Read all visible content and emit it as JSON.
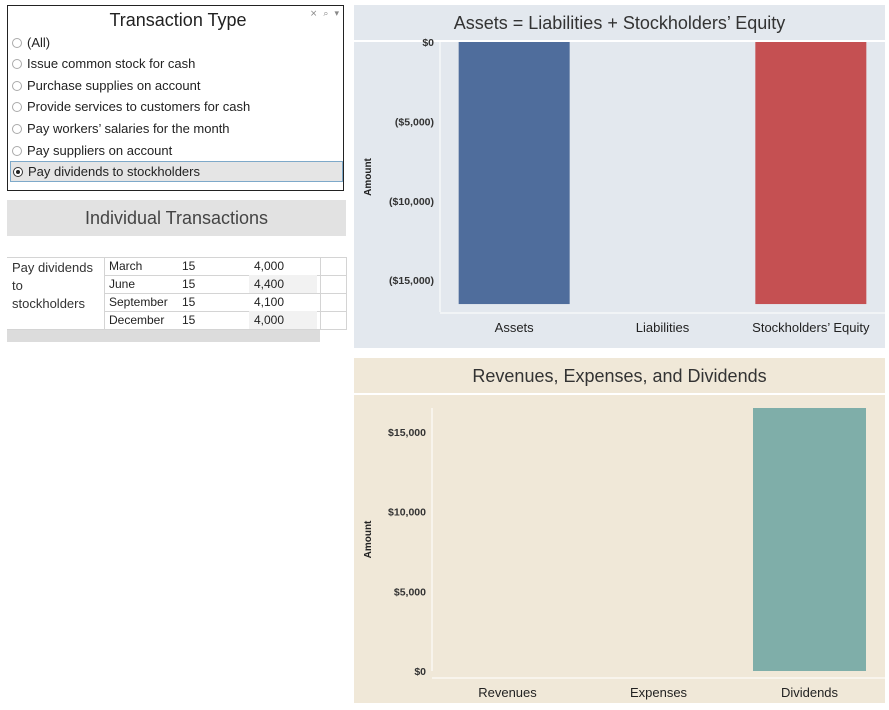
{
  "filter": {
    "title": "Transaction Type",
    "icons": [
      "clear-filter-icon",
      "search-icon",
      "dropdown-icon"
    ],
    "options": [
      {
        "label": "(All)",
        "selected": false
      },
      {
        "label": "Issue common stock for cash",
        "selected": false
      },
      {
        "label": "Purchase supplies on account",
        "selected": false
      },
      {
        "label": "Provide services to customers for cash",
        "selected": false
      },
      {
        "label": "Pay workers’ salaries for the month",
        "selected": false
      },
      {
        "label": "Pay suppliers on account",
        "selected": false
      },
      {
        "label": "Pay dividends to stockholders",
        "selected": true
      }
    ]
  },
  "individual": {
    "title": "Individual Transactions",
    "group_lines": [
      "Pay dividends",
      "to",
      "stockholders"
    ],
    "rows": [
      {
        "month": "March",
        "day": "15",
        "value": "4,000"
      },
      {
        "month": "June",
        "day": "15",
        "value": "4,400"
      },
      {
        "month": "September",
        "day": "15",
        "value": "4,100"
      },
      {
        "month": "December",
        "day": "15",
        "value": "4,000"
      }
    ]
  },
  "chart_data": [
    {
      "type": "bar",
      "title": "Assets = Liabilities + Stockholders’ Equity",
      "ylabel": "Amount",
      "categories": [
        "Assets",
        "Liabilities",
        "Stockholders’ Equity"
      ],
      "values": [
        -16500,
        0,
        -16500
      ],
      "colors": [
        "#4f6d9c",
        "#4f6d9c",
        "#c55052"
      ],
      "ylim": [
        -17000,
        0
      ],
      "yticks": [
        0,
        -5000,
        -10000,
        -15000
      ],
      "ytick_labels": [
        "$0",
        "($5,000)",
        "($10,000)",
        "($15,000)"
      ],
      "background": "#e3e8ee"
    },
    {
      "type": "bar",
      "title": "Revenues, Expenses, and Dividends",
      "ylabel": "Amount",
      "categories": [
        "Revenues",
        "Expenses",
        "Dividends"
      ],
      "values": [
        0,
        0,
        16500
      ],
      "colors": [
        "#7faea9",
        "#7faea9",
        "#7faea9"
      ],
      "ylim": [
        0,
        16500
      ],
      "yticks": [
        0,
        5000,
        10000,
        15000
      ],
      "ytick_labels": [
        "$0",
        "$5,000",
        "$10,000",
        "$15,000"
      ],
      "background": "#f0e8d8"
    }
  ]
}
